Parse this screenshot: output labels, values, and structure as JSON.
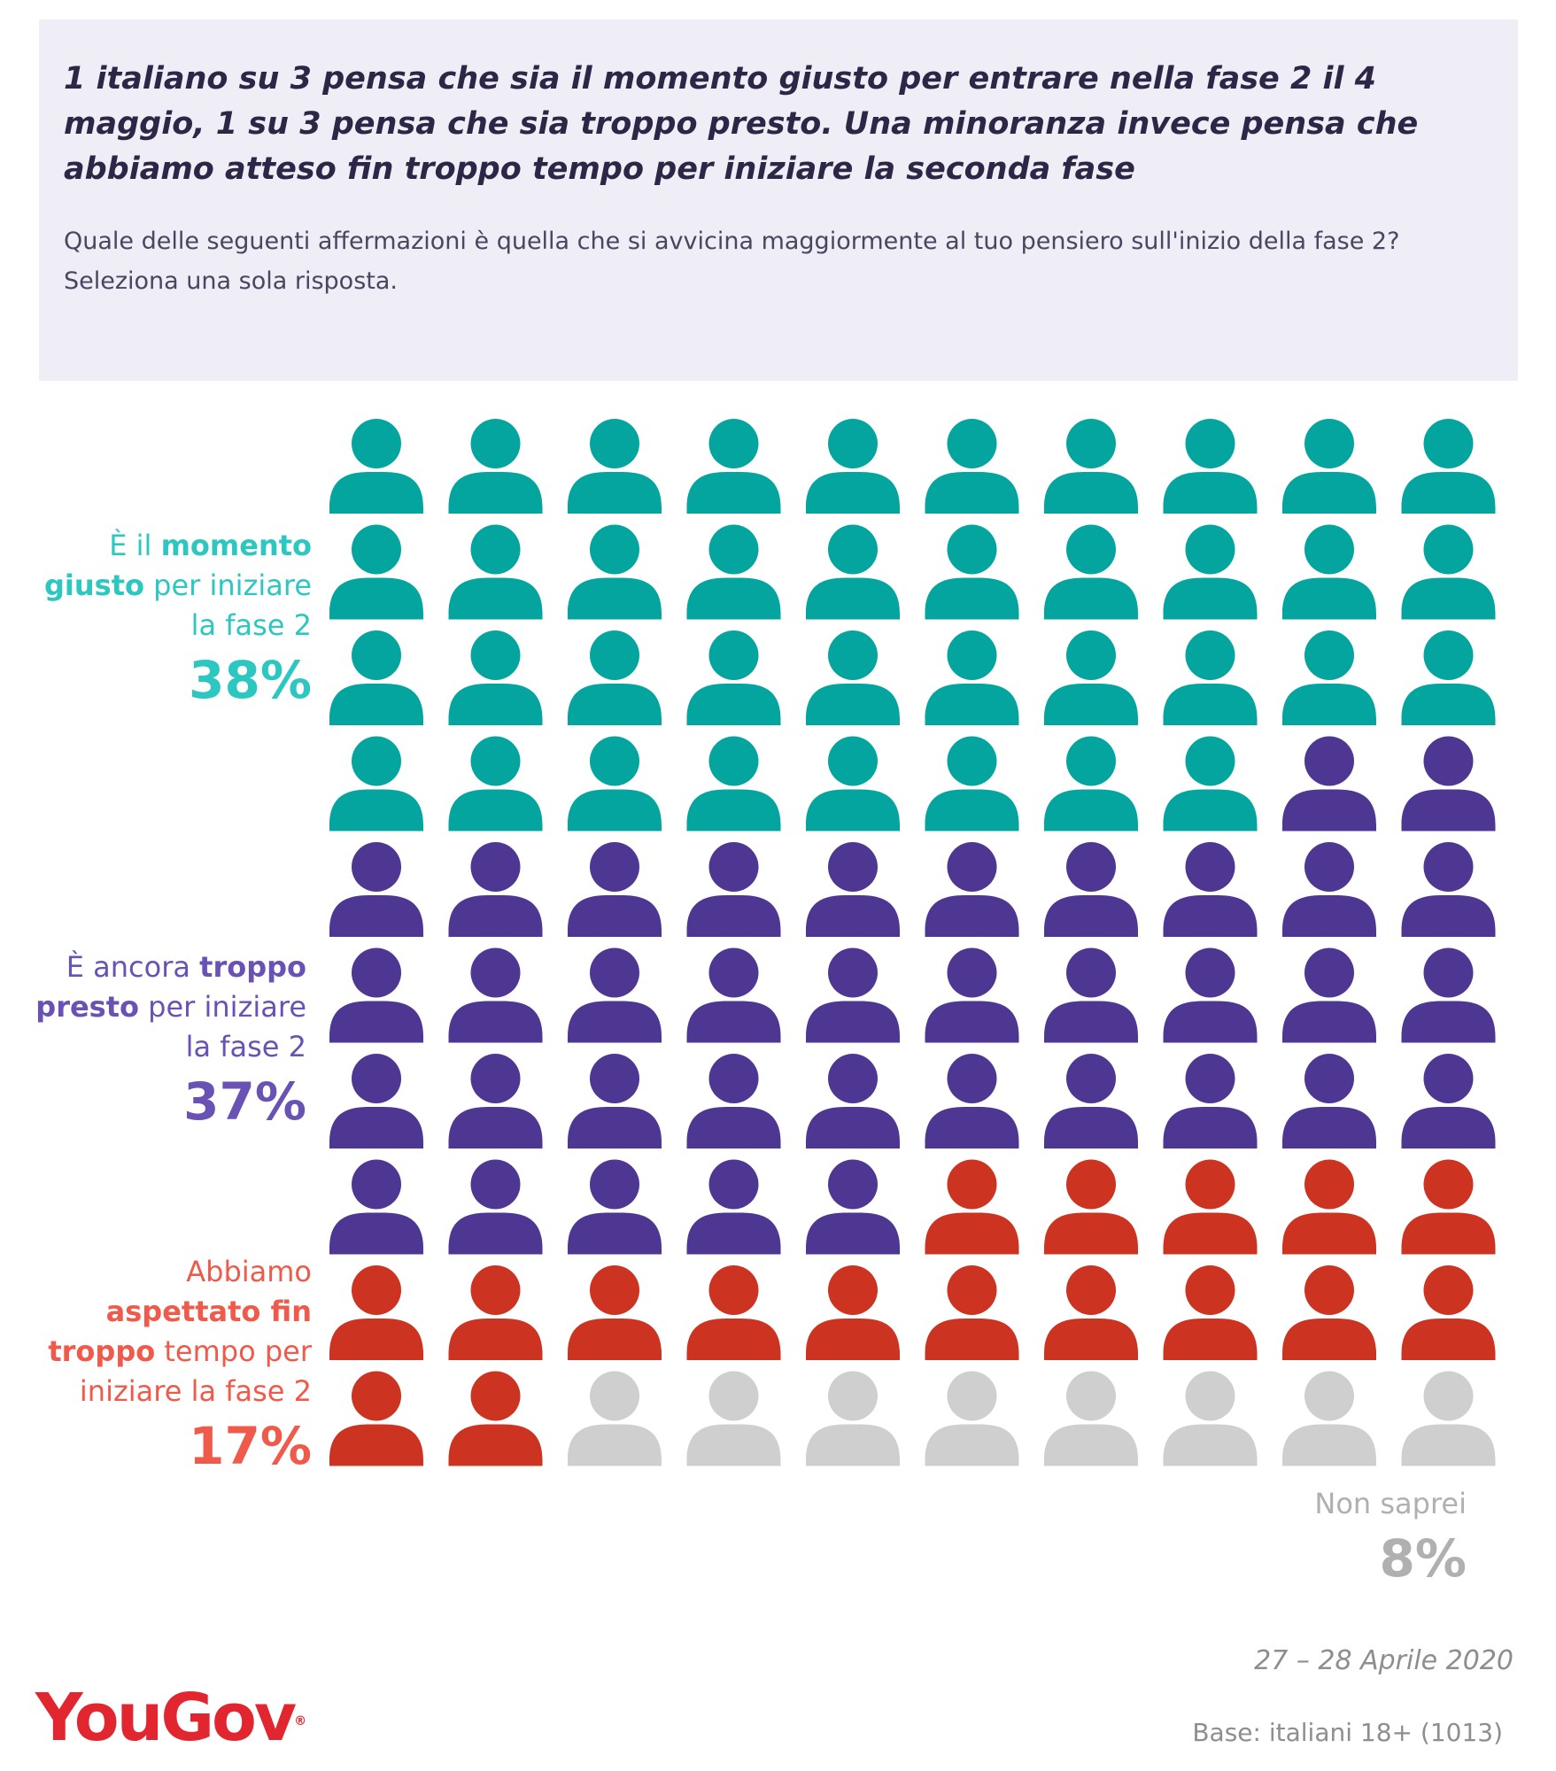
{
  "header": {
    "headline": "1 italiano su 3 pensa che sia il momento giusto per entrare nella fase 2 il 4 maggio, 1 su 3 pensa che sia troppo presto. Una minoranza invece pensa che abbiamo atteso fin troppo tempo per iniziare la seconda fase",
    "question": "Quale delle seguenti affermazioni è quella che si avvicina maggiormente al tuo pensiero sull'inizio della fase 2? Seleziona una sola risposta."
  },
  "chart_data": {
    "type": "waffle",
    "total_icons": 100,
    "icons_per_row": 10,
    "series": [
      {
        "label_parts": [
          {
            "text": "È il ",
            "bold": false
          },
          {
            "text": "momento giusto",
            "bold": true
          },
          {
            "text": " per iniziare la fase 2",
            "bold": false
          }
        ],
        "percent": 38,
        "percent_label": "38%",
        "color": "#05a59f",
        "label_color": "#2cc7c1"
      },
      {
        "label_parts": [
          {
            "text": "È ancora ",
            "bold": false
          },
          {
            "text": "troppo presto",
            "bold": true
          },
          {
            "text": " per iniziare la fase 2",
            "bold": false
          }
        ],
        "percent": 37,
        "percent_label": "37%",
        "color": "#4e3792",
        "label_color": "#6a52b5"
      },
      {
        "label_parts": [
          {
            "text": "Abbiamo ",
            "bold": false
          },
          {
            "text": "aspettato fin troppo",
            "bold": true
          },
          {
            "text": " tempo per iniziare la fase 2",
            "bold": false
          }
        ],
        "percent": 17,
        "percent_label": "17%",
        "color": "#cc3320",
        "label_color": "#f05a4a"
      },
      {
        "label_parts": [
          {
            "text": "Non saprei",
            "bold": false
          }
        ],
        "percent": 8,
        "percent_label": "8%",
        "color": "#cfcfcf",
        "label_color": "#b0b0b0"
      }
    ]
  },
  "footer": {
    "date": "27 – 28 Aprile 2020",
    "base": "Base: italiani 18+ (1013)",
    "logo_text": "YouGov",
    "logo_mark": "®"
  }
}
